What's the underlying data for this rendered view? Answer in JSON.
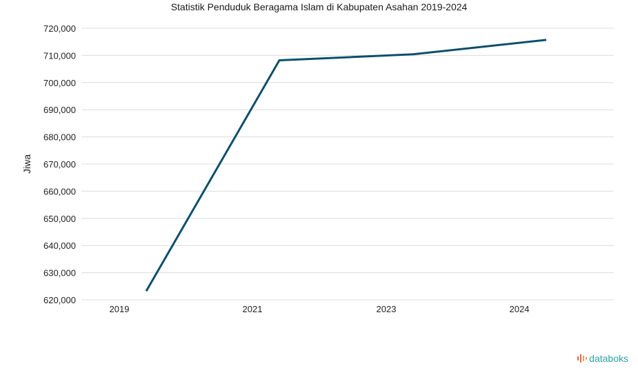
{
  "chart_data": {
    "type": "line",
    "title": "Statistik Penduduk Beragama Islam di Kabupaten Asahan 2019-2024",
    "xlabel": "",
    "ylabel": "Jiwa",
    "categories": [
      "2019",
      "2021",
      "2023",
      "2024"
    ],
    "series": [
      {
        "values": [
          623200,
          708200,
          710400,
          715700
        ]
      }
    ],
    "ylim": [
      620000,
      720000
    ],
    "yticks": [
      620000,
      630000,
      640000,
      650000,
      660000,
      670000,
      680000,
      690000,
      700000,
      710000,
      720000
    ],
    "ytick_labels": [
      "620,000",
      "630,000",
      "640,000",
      "650,000",
      "660,000",
      "670,000",
      "680,000",
      "690,000",
      "700,000",
      "710,000",
      "720,000"
    ],
    "grid": true,
    "line_color": "#0b4f6c"
  },
  "brand": {
    "name": "databoks",
    "color": "#2aa3a3",
    "icon": "databoks-logo-icon"
  }
}
